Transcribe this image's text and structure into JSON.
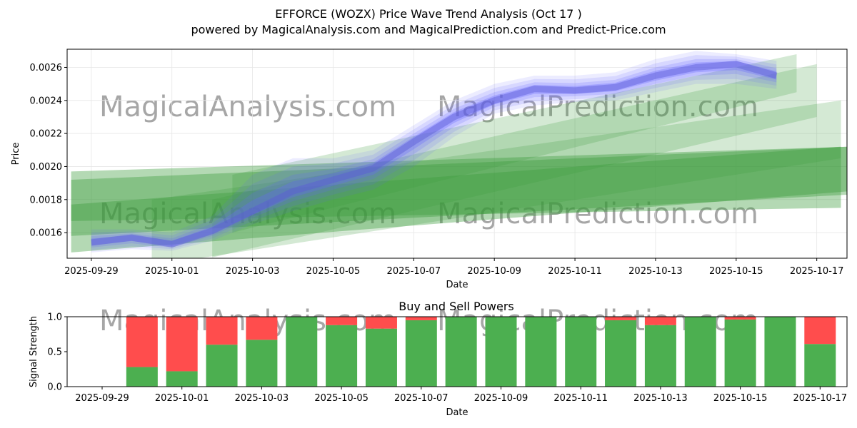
{
  "title": "EFFORCE (WOZX) Price Wave Trend Analysis (Oct 17 )",
  "subtitle": "powered by MagicalAnalysis.com and MagicalPrediction.com and Predict-Price.com",
  "watermarks": [
    "MagicalAnalysis.com",
    "MagicalPrediction.com"
  ],
  "colors": {
    "buy": "#4caf50",
    "sell": "#ff4d4d",
    "blue_band": "#6666ff",
    "green_band": "#3a9a3a",
    "grid": "#e6e6e6"
  },
  "chart_data": [
    {
      "type": "area",
      "title": "",
      "xlabel": "Date",
      "ylabel": "Price",
      "x_ticks": [
        "2025-09-29",
        "2025-10-01",
        "2025-10-03",
        "2025-10-05",
        "2025-10-07",
        "2025-10-09",
        "2025-10-11",
        "2025-10-13",
        "2025-10-15",
        "2025-10-17"
      ],
      "y_ticks": [
        "0.0016",
        "0.0018",
        "0.0020",
        "0.0022",
        "0.0024",
        "0.0026"
      ],
      "xlim_days": [
        -0.6,
        18.75
      ],
      "ylim": [
        0.001445,
        0.00271
      ],
      "grid": true,
      "series": [
        {
          "name": "price wave (blue)",
          "x": [
            0,
            1,
            2,
            3,
            4,
            5,
            6,
            7,
            8,
            9,
            10,
            11,
            12,
            13,
            14,
            15,
            16,
            17
          ],
          "low": [
            0.00148,
            0.0015,
            0.00149,
            0.00155,
            0.00165,
            0.00173,
            0.0018,
            0.00186,
            0.002,
            0.00218,
            0.00232,
            0.00237,
            0.00239,
            0.0024,
            0.00245,
            0.0025,
            0.0025,
            0.00247
          ],
          "high": [
            0.00162,
            0.00162,
            0.0016,
            0.0017,
            0.00195,
            0.00205,
            0.00205,
            0.0021,
            0.00225,
            0.0024,
            0.0025,
            0.00255,
            0.00255,
            0.00257,
            0.00265,
            0.0027,
            0.00268,
            0.00264
          ],
          "mid": [
            0.00154,
            0.00157,
            0.00153,
            0.00161,
            0.00173,
            0.00185,
            0.00192,
            0.00199,
            0.00215,
            0.0023,
            0.0024,
            0.00247,
            0.00246,
            0.00248,
            0.00255,
            0.0026,
            0.00262,
            0.00255
          ]
        },
        {
          "name": "trend projection (green)",
          "bands": [
            {
              "x": [
                -0.5,
                18.8
              ],
              "start": [
                0.00148,
                0.00197
              ],
              "end": [
                0.00185,
                0.00212
              ]
            },
            {
              "x": [
                -0.5,
                18.8
              ],
              "start": [
                0.00158,
                0.00192
              ],
              "end": [
                0.00183,
                0.00212
              ]
            },
            {
              "x": [
                -0.5,
                18.6
              ],
              "start": [
                0.00167,
                0.00177
              ],
              "end": [
                0.00175,
                0.00212
              ]
            },
            {
              "x": [
                1.5,
                18.6
              ],
              "start": [
                0.0014,
                0.0018
              ],
              "end": [
                0.00205,
                0.0024
              ]
            },
            {
              "x": [
                3.0,
                18.0
              ],
              "start": [
                0.00145,
                0.0018
              ],
              "end": [
                0.0023,
                0.00262
              ]
            },
            {
              "x": [
                3.5,
                17.5
              ],
              "start": [
                0.0016,
                0.00195
              ],
              "end": [
                0.00245,
                0.00268
              ]
            }
          ]
        }
      ]
    },
    {
      "type": "bar",
      "title": "Buy and Sell Powers",
      "xlabel": "Date",
      "ylabel": "Signal Strength",
      "x_ticks": [
        "2025-09-29",
        "2025-10-01",
        "2025-10-03",
        "2025-10-05",
        "2025-10-07",
        "2025-10-09",
        "2025-10-11",
        "2025-10-13",
        "2025-10-15",
        "2025-10-17"
      ],
      "y_ticks": [
        "0.0",
        "0.5",
        "1.0"
      ],
      "ylim": [
        0,
        1
      ],
      "categories": [
        "2025-09-30",
        "2025-10-01",
        "2025-10-02",
        "2025-10-03",
        "2025-10-04",
        "2025-10-05",
        "2025-10-06",
        "2025-10-07",
        "2025-10-08",
        "2025-10-09",
        "2025-10-10",
        "2025-10-11",
        "2025-10-12",
        "2025-10-13",
        "2025-10-14",
        "2025-10-15",
        "2025-10-16",
        "2025-10-17"
      ],
      "series": [
        {
          "name": "Buy",
          "values": [
            0.28,
            0.22,
            0.6,
            0.67,
            1.0,
            0.88,
            0.83,
            0.95,
            1.0,
            1.0,
            1.0,
            1.0,
            0.95,
            0.88,
            1.0,
            0.96,
            1.0,
            0.61
          ]
        },
        {
          "name": "Sell",
          "values": [
            0.72,
            0.78,
            0.4,
            0.33,
            0.0,
            0.12,
            0.17,
            0.05,
            0.0,
            0.0,
            0.0,
            0.0,
            0.05,
            0.12,
            0.0,
            0.04,
            0.0,
            0.39
          ]
        }
      ]
    }
  ]
}
